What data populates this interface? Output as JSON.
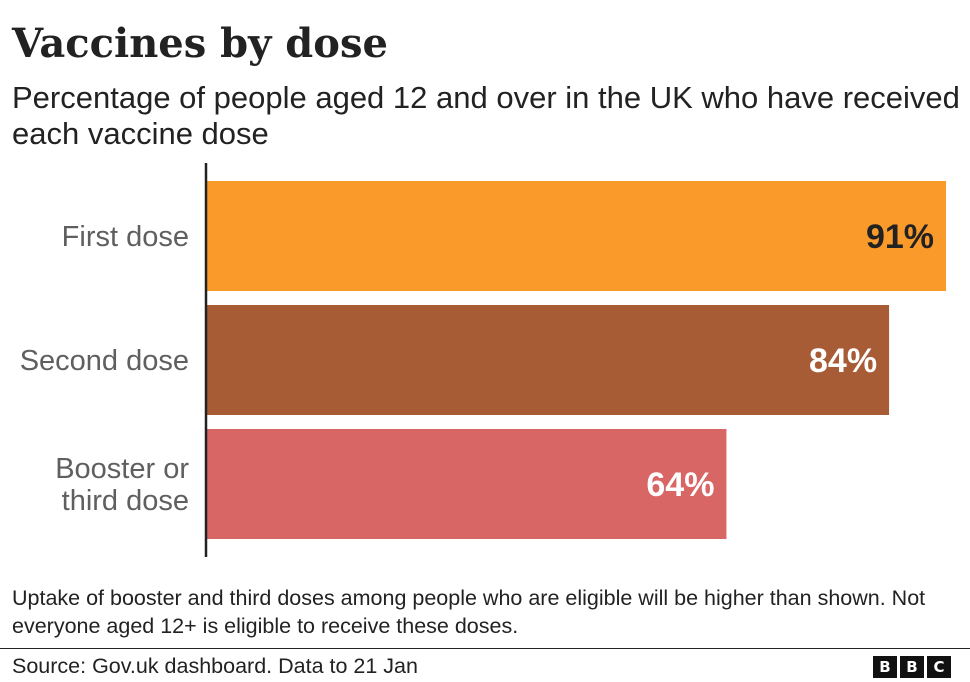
{
  "chart_data": {
    "type": "bar",
    "orientation": "horizontal",
    "title": "Vaccines by dose",
    "subtitle": "Percentage of people aged 12 and over in the UK who have received each vaccine dose",
    "categories": [
      [
        "First dose"
      ],
      [
        "Second dose"
      ],
      [
        "Booster or",
        "third dose"
      ]
    ],
    "values": [
      91,
      84,
      64
    ],
    "value_labels": [
      "91%",
      "84%",
      "64%"
    ],
    "bar_colors": [
      "#fa9a2b",
      "#a85c35",
      "#d76664"
    ],
    "value_label_colors": [
      "#222222",
      "#ffffff",
      "#ffffff"
    ],
    "xlim": [
      0,
      91
    ],
    "grid": false,
    "legend": "none",
    "note": "Uptake of booster and third doses among people who are eligible will be higher than shown. Not everyone aged 12+ is eligible to receive these doses.",
    "source": "Source: Gov.uk dashboard. Data to 21 Jan"
  },
  "branding": {
    "logo_letters": [
      "B",
      "B",
      "C"
    ]
  }
}
